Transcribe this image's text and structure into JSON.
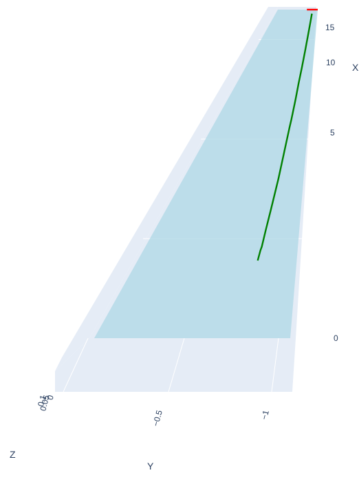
{
  "chart_data": {
    "type": "line",
    "dimensions": "3d",
    "x_axis": {
      "title": "X",
      "tick_labels": [
        "0",
        "5",
        "10",
        "15"
      ],
      "range": [
        0,
        16.5
      ]
    },
    "y_axis": {
      "title": "Y",
      "tick_labels": [
        "−0.5",
        "−1"
      ],
      "range": [
        0,
        -1.1
      ]
    },
    "z_axis": {
      "title": "Z",
      "tick_labels": [
        "0",
        "0.05",
        "0.1"
      ],
      "range": [
        0,
        0.1
      ]
    },
    "surface": {
      "color": "#add8e6"
    },
    "series": [
      {
        "color": "#008000",
        "points": [
          {
            "x": 3.9,
            "y": -0.83
          },
          {
            "x": 4.4,
            "y": -0.835
          },
          {
            "x": 4.6,
            "y": -0.84
          },
          {
            "x": 5.4,
            "y": -0.845
          },
          {
            "x": 6.5,
            "y": -0.855
          },
          {
            "x": 8.0,
            "y": -0.87
          },
          {
            "x": 9.5,
            "y": -0.88
          },
          {
            "x": 10.6,
            "y": -0.89
          },
          {
            "x": 11.0,
            "y": -0.895
          },
          {
            "x": 12.0,
            "y": -0.905
          },
          {
            "x": 12.8,
            "y": -0.91
          },
          {
            "x": 13.6,
            "y": -0.92
          },
          {
            "x": 14.4,
            "y": -0.93
          },
          {
            "x": 15.2,
            "y": -0.94
          },
          {
            "x": 15.9,
            "y": -0.95
          },
          {
            "x": 16.3,
            "y": -0.955
          }
        ]
      },
      {
        "color": "#ff0000",
        "points": [
          {
            "x": 16.5,
            "y": -0.8
          },
          {
            "x": 16.5,
            "y": -1.1
          }
        ]
      }
    ]
  }
}
